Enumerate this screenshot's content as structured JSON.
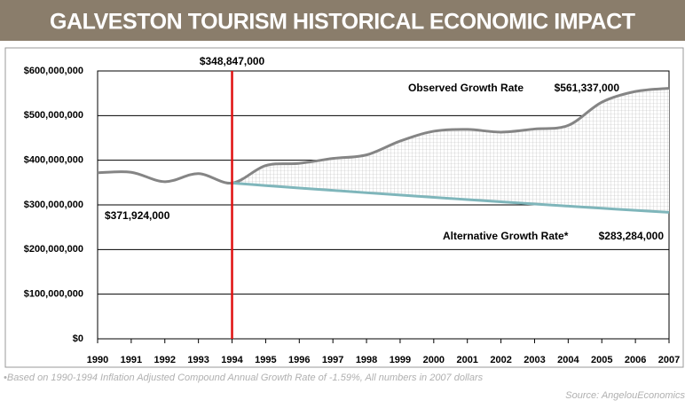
{
  "chart_data": {
    "type": "line",
    "title": "GALVESTON TOURISM HISTORICAL ECONOMIC IMPACT",
    "categories": [
      "1990",
      "1991",
      "1992",
      "1993",
      "1994",
      "1995",
      "1996",
      "1997",
      "1998",
      "1999",
      "2000",
      "2001",
      "2002",
      "2003",
      "2004",
      "2005",
      "2006",
      "2007"
    ],
    "series": [
      {
        "name": "Observed Growth Rate",
        "color": "#858585",
        "values": [
          371924000,
          373000000,
          352000000,
          370000000,
          348847000,
          388000000,
          393000000,
          404000000,
          412000000,
          443000000,
          465000000,
          469000000,
          463000000,
          470000000,
          478000000,
          530000000,
          554000000,
          561337000
        ],
        "value_labels": [
          "$371,924,000",
          null,
          null,
          null,
          "$348,847,000",
          null,
          null,
          null,
          null,
          null,
          null,
          null,
          null,
          null,
          null,
          null,
          null,
          "$561,337,000"
        ]
      },
      {
        "name": "Alternative Growth Rate*",
        "color": "#7fb6bb",
        "values": [
          null,
          null,
          null,
          null,
          348847000,
          343300000,
          337800000,
          332500000,
          327200000,
          322000000,
          316900000,
          311900000,
          306900000,
          302000000,
          297200000,
          292500000,
          287800000,
          283284000
        ],
        "value_labels": [
          null,
          null,
          null,
          null,
          null,
          null,
          null,
          null,
          null,
          null,
          null,
          null,
          null,
          null,
          null,
          null,
          null,
          "$283,284,000"
        ]
      }
    ],
    "reference_line": {
      "x": "1994",
      "color": "#e01010"
    },
    "ylim": [
      0,
      600000000
    ],
    "yticks": [
      {
        "value": 0,
        "label": "$0"
      },
      {
        "value": 100000000,
        "label": "$100,000,000"
      },
      {
        "value": 200000000,
        "label": "$200,000,000"
      },
      {
        "value": 300000000,
        "label": "$300,000,000"
      },
      {
        "value": 400000000,
        "label": "$400,000,000"
      },
      {
        "value": 500000000,
        "label": "$500,000,000"
      },
      {
        "value": 600000000,
        "label": "$600,000,000"
      }
    ],
    "grid": true,
    "footnote": "•Based on 1990-1994 Inflation Adjusted Compound Annual  Growth Rate of -1.59%, All numbers in 2007 dollars",
    "source": "Source: AngelouEconomics"
  }
}
